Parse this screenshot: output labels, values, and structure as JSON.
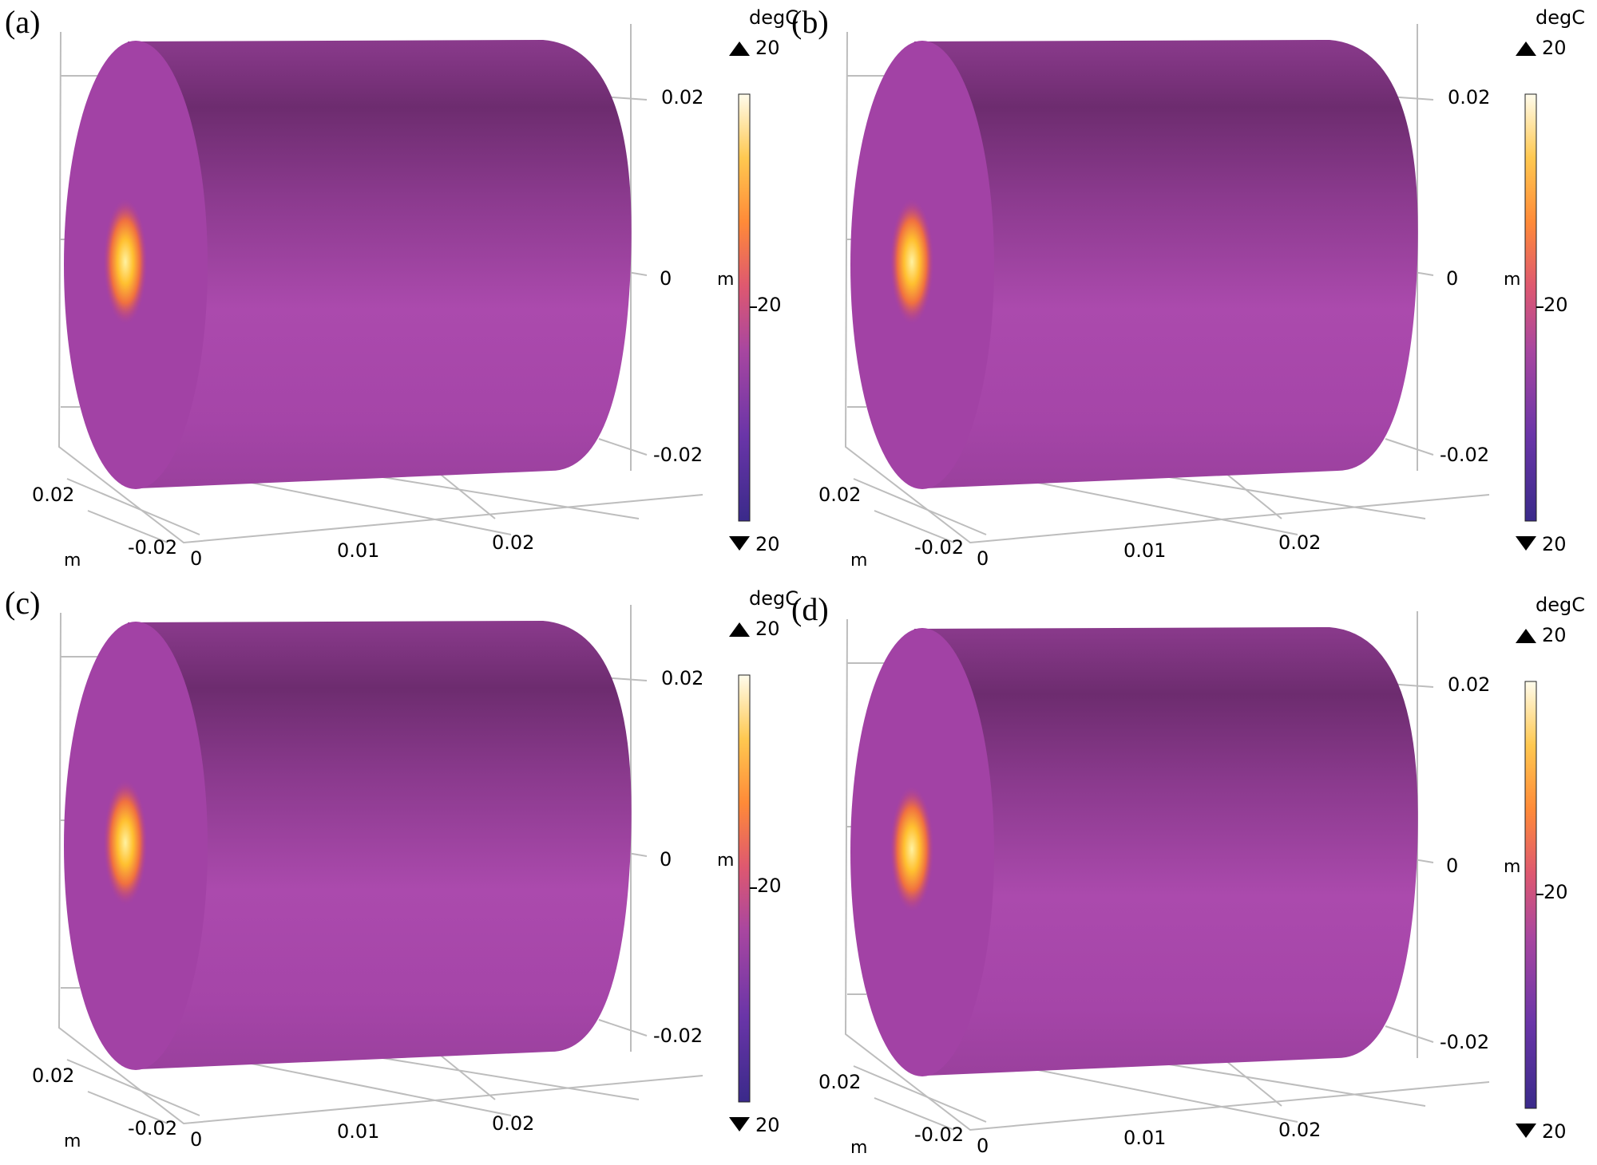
{
  "panels": [
    {
      "label": "(a)",
      "y_ticks": [
        "0.02",
        "0",
        "-0.02"
      ],
      "x_ticks": [
        "0",
        "0.01",
        "0.02"
      ],
      "z_ticks": [
        "0.02",
        "-0.02"
      ],
      "unit_side": "m",
      "unit_bottom": "m",
      "colorbar": {
        "title": "degC",
        "max": "20",
        "mid": "20",
        "min": "20",
        "unit": "m"
      }
    },
    {
      "label": "(b)",
      "y_ticks": [
        "0.02",
        "0",
        "-0.02"
      ],
      "x_ticks": [
        "0",
        "0.01",
        "0.02"
      ],
      "z_ticks": [
        "0.02",
        "-0.02"
      ],
      "unit_side": "m",
      "unit_bottom": "m",
      "colorbar": {
        "title": "degC",
        "max": "20",
        "mid": "20",
        "min": "20",
        "unit": "m"
      }
    },
    {
      "label": "(c)",
      "y_ticks": [
        "0.02",
        "0",
        "-0.02"
      ],
      "x_ticks": [
        "0",
        "0.01",
        "0.02"
      ],
      "z_ticks": [
        "0.02",
        "-0.02"
      ],
      "unit_side": "m",
      "unit_bottom": "m",
      "colorbar": {
        "title": "degC",
        "max": "20",
        "mid": "20",
        "min": "20",
        "unit": "m"
      }
    },
    {
      "label": "(d)",
      "y_ticks": [
        "0.02",
        "0",
        "-0.02"
      ],
      "x_ticks": [
        "0",
        "0.01",
        "0.02"
      ],
      "z_ticks": [
        "0.02",
        "-0.02"
      ],
      "unit_side": "m",
      "unit_bottom": "m",
      "colorbar": {
        "title": "degC",
        "max": "20",
        "mid": "20",
        "min": "20",
        "unit": "m"
      }
    }
  ],
  "colors": {
    "cylinder_front": "#a242a5",
    "cylinder_dark": "#6d2c6f",
    "cylinder_mid": "#8b3a8e",
    "cylinder_light": "#ad4aae",
    "hot_core": "#fff2a0",
    "hot_mid": "#ffb020",
    "hot_edge": "#f06050",
    "colormap": [
      "#3a2a8a",
      "#7a3aa8",
      "#b04aa0",
      "#e05a5a",
      "#ff9a30",
      "#ffd860",
      "#fffcec"
    ],
    "axis_line": "#bbbbbb"
  }
}
